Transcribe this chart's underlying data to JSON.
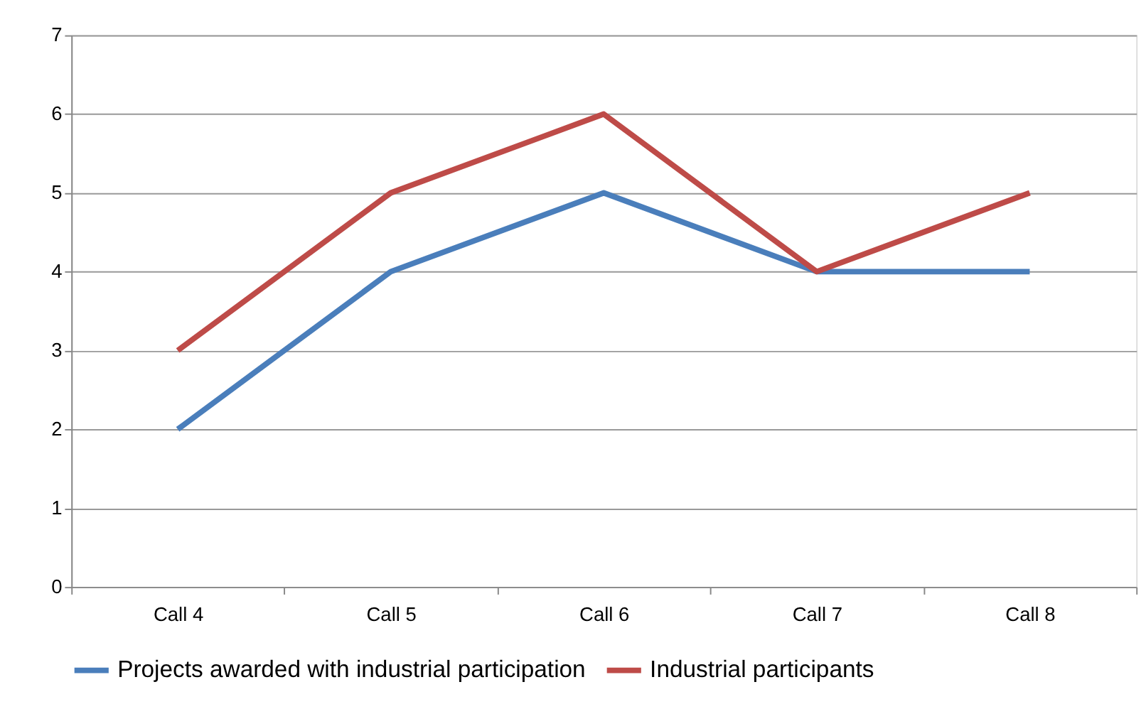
{
  "chart_data": {
    "type": "line",
    "categories": [
      "Call 4",
      "Call 5",
      "Call 6",
      "Call 7",
      "Call 8"
    ],
    "series": [
      {
        "name": "Projects awarded with industrial participation",
        "color": "#4a7ebb",
        "values": [
          2,
          4,
          5,
          4,
          4
        ]
      },
      {
        "name": "Industrial participants",
        "color": "#be4b48",
        "values": [
          3,
          5,
          6,
          4,
          5
        ]
      }
    ],
    "ylim": [
      0,
      7
    ],
    "yticks": [
      0,
      1,
      2,
      3,
      4,
      5,
      6,
      7
    ],
    "grid": "y",
    "legend": "bottom",
    "marker": "none",
    "line_style": "solid"
  }
}
